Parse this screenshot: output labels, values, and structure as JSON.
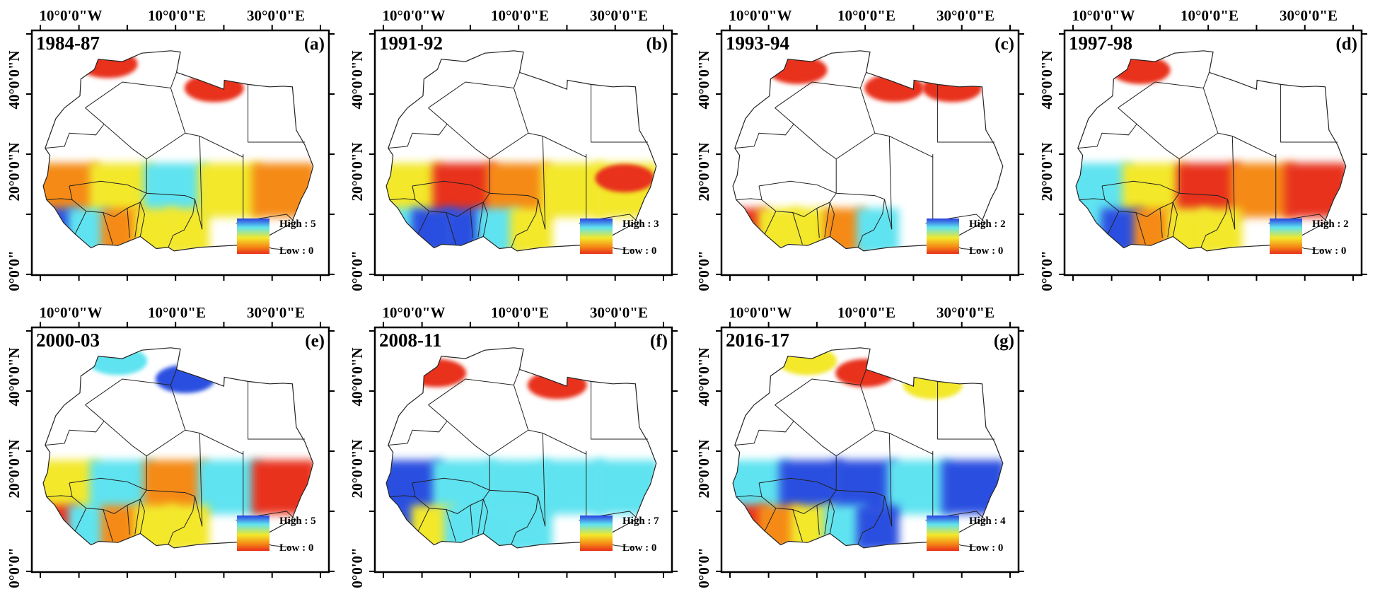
{
  "figure": {
    "lon_labels": [
      "10°0'0\"W",
      "10°0'0\"E",
      "30°0'0\"E"
    ],
    "lat_labels": [
      "40°0'0\"N",
      "20°0'0\"N",
      "0°0'0\""
    ],
    "legend_high_prefix": "High : ",
    "legend_low": "Low : 0",
    "colors": {
      "red": "#e8301b",
      "orange": "#f58a16",
      "yellow": "#f3e82a",
      "cyan": "#5fe3f0",
      "blue": "#2a50e0",
      "border": "#222222",
      "frame": "#000000"
    }
  },
  "panels": [
    {
      "id": "a",
      "period": "1984-87",
      "letter": "(a)",
      "high": 5,
      "sahel_band": [
        "#f58a16",
        "#f3e82a",
        "#5fe3f0",
        "#f3e82a",
        "#f58a16"
      ],
      "coast_cells": [
        "#2a50e0",
        "#5fe3f0",
        "#f58a16",
        "#f3e82a",
        "#f3e82a"
      ],
      "north_patches": [
        {
          "lon": -4,
          "lat": 35,
          "value": "red"
        },
        {
          "lon": 18,
          "lat": 31,
          "value": "red"
        }
      ]
    },
    {
      "id": "b",
      "period": "1991-92",
      "letter": "(b)",
      "high": 3,
      "sahel_band": [
        "#f3e82a",
        "#e8301b",
        "#f58a16",
        "#f3e82a",
        "#f3e82a"
      ],
      "coast_cells": [
        "#5fe3f0",
        "#2a50e0",
        "#2a50e0",
        "#5fe3f0",
        "#f3e82a"
      ],
      "north_patches": [
        {
          "lon": 32,
          "lat": 16,
          "value": "red"
        }
      ]
    },
    {
      "id": "c",
      "period": "1993-94",
      "letter": "(c)",
      "high": 2,
      "sahel_band": [],
      "coast_cells": [
        "#e8301b",
        "#f3e82a",
        "#f3e82a",
        "#f58a16",
        "#5fe3f0"
      ],
      "north_patches": [
        {
          "lon": -4,
          "lat": 34,
          "value": "red"
        },
        {
          "lon": 16,
          "lat": 31,
          "value": "red"
        },
        {
          "lon": 28,
          "lat": 31,
          "value": "red"
        }
      ]
    },
    {
      "id": "d",
      "period": "1997-98",
      "letter": "(d)",
      "high": 2,
      "sahel_band": [
        "#5fe3f0",
        "#f3e82a",
        "#e8301b",
        "#f58a16",
        "#e8301b"
      ],
      "coast_cells": [
        "#5fe3f0",
        "#2a50e0",
        "#f58a16",
        "#f3e82a",
        "#f3e82a"
      ],
      "north_patches": [
        {
          "lon": -4,
          "lat": 34,
          "value": "red"
        }
      ]
    },
    {
      "id": "e",
      "period": "2000-03",
      "letter": "(e)",
      "high": 5,
      "sahel_band": [
        "#f3e82a",
        "#5fe3f0",
        "#f58a16",
        "#5fe3f0",
        "#e8301b"
      ],
      "coast_cells": [
        "#e8301b",
        "#5fe3f0",
        "#f58a16",
        "#f3e82a",
        "#f3e82a"
      ],
      "north_patches": [
        {
          "lon": -2,
          "lat": 35,
          "value": "cyan"
        },
        {
          "lon": 12,
          "lat": 32,
          "value": "blue"
        }
      ]
    },
    {
      "id": "f",
      "period": "2008-11",
      "letter": "(f)",
      "high": 7,
      "sahel_band": [
        "#2a50e0",
        "#5fe3f0",
        "#5fe3f0",
        "#5fe3f0",
        "#5fe3f0"
      ],
      "coast_cells": [
        "#2a50e0",
        "#f3e82a",
        "#5fe3f0",
        "#5fe3f0",
        "#5fe3f0"
      ],
      "north_patches": [
        {
          "lon": -7,
          "lat": 33,
          "value": "red"
        },
        {
          "lon": 18,
          "lat": 31,
          "value": "red"
        }
      ]
    },
    {
      "id": "g",
      "period": "2016-17",
      "letter": "(g)",
      "high": 4,
      "sahel_band": [
        "#5fe3f0",
        "#2a50e0",
        "#2a50e0",
        "#5fe3f0",
        "#2a50e0"
      ],
      "coast_cells": [
        "#e8301b",
        "#f58a16",
        "#f3e82a",
        "#5fe3f0",
        "#2a50e0"
      ],
      "north_patches": [
        {
          "lon": -2,
          "lat": 35,
          "value": "yellow"
        },
        {
          "lon": 10,
          "lat": 33,
          "value": "red"
        },
        {
          "lon": 24,
          "lat": 31,
          "value": "yellow"
        }
      ]
    }
  ]
}
